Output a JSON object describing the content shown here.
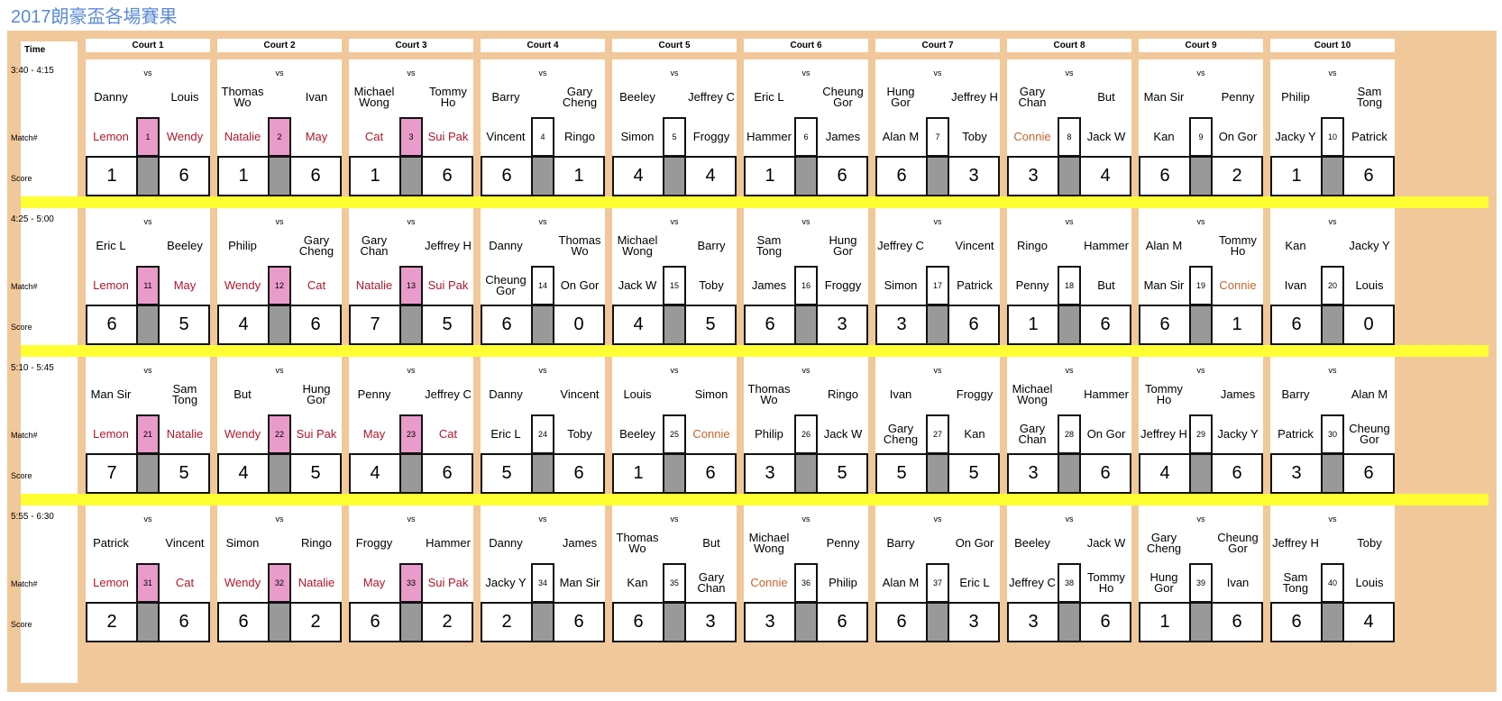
{
  "title": "2017朗豪盃各場賽果",
  "header": {
    "time_label": "Time",
    "vs_label": "vs",
    "match_label": "Match#",
    "score_label": "Score",
    "courts": [
      "Court 1",
      "Court 2",
      "Court 3",
      "Court 4",
      "Court 5",
      "Court 6",
      "Court 7",
      "Court 8",
      "Court 9",
      "Court 10"
    ]
  },
  "colors": {
    "umpire_red": "#b0172b",
    "umpire_orange": "#c8642a",
    "highlight_pink": "#e99bc9",
    "separator_yellow": "#ffff33",
    "frame_tan": "#f1c89a"
  },
  "slots": [
    {
      "time": "3:40 - 4:15",
      "matches": [
        {
          "p1": "Danny",
          "p2": "Louis",
          "u1": "Lemon",
          "u2": "Wendy",
          "num": "1",
          "s1": "1",
          "s2": "6",
          "u1c": "red",
          "u2c": "red",
          "pink": true
        },
        {
          "p1": "Thomas Wo",
          "p2": "Ivan",
          "u1": "Natalie",
          "u2": "May",
          "num": "2",
          "s1": "1",
          "s2": "6",
          "u1c": "red",
          "u2c": "red",
          "pink": true
        },
        {
          "p1": "Michael Wong",
          "p2": "Tommy Ho",
          "u1": "Cat",
          "u2": "Sui Pak",
          "num": "3",
          "s1": "1",
          "s2": "6",
          "u1c": "red",
          "u2c": "red",
          "pink": true
        },
        {
          "p1": "Barry",
          "p2": "Gary Cheng",
          "u1": "Vincent",
          "u2": "Ringo",
          "num": "4",
          "s1": "6",
          "s2": "1",
          "u1c": "",
          "u2c": "",
          "pink": false
        },
        {
          "p1": "Beeley",
          "p2": "Jeffrey C",
          "u1": "Simon",
          "u2": "Froggy",
          "num": "5",
          "s1": "4",
          "s2": "4",
          "u1c": "",
          "u2c": "",
          "pink": false
        },
        {
          "p1": "Eric L",
          "p2": "Cheung Gor",
          "u1": "Hammer",
          "u2": "James",
          "num": "6",
          "s1": "1",
          "s2": "6",
          "u1c": "",
          "u2c": "",
          "pink": false
        },
        {
          "p1": "Hung Gor",
          "p2": "Jeffrey H",
          "u1": "Alan M",
          "u2": "Toby",
          "num": "7",
          "s1": "6",
          "s2": "3",
          "u1c": "",
          "u2c": "",
          "pink": false
        },
        {
          "p1": "Gary Chan",
          "p2": "But",
          "u1": "Connie",
          "u2": "Jack W",
          "num": "8",
          "s1": "3",
          "s2": "4",
          "u1c": "orange",
          "u2c": "",
          "pink": false
        },
        {
          "p1": "Man Sir",
          "p2": "Penny",
          "u1": "Kan",
          "u2": "On Gor",
          "num": "9",
          "s1": "6",
          "s2": "2",
          "u1c": "",
          "u2c": "",
          "pink": false
        },
        {
          "p1": "Philip",
          "p2": "Sam Tong",
          "u1": "Jacky Y",
          "u2": "Patrick",
          "num": "10",
          "s1": "1",
          "s2": "6",
          "u1c": "",
          "u2c": "",
          "pink": false
        }
      ]
    },
    {
      "time": "4:25 - 5:00",
      "matches": [
        {
          "p1": "Eric L",
          "p2": "Beeley",
          "u1": "Lemon",
          "u2": "May",
          "num": "11",
          "s1": "6",
          "s2": "5",
          "u1c": "red",
          "u2c": "red",
          "pink": true
        },
        {
          "p1": "Philip",
          "p2": "Gary Cheng",
          "u1": "Wendy",
          "u2": "Cat",
          "num": "12",
          "s1": "4",
          "s2": "6",
          "u1c": "red",
          "u2c": "red",
          "pink": true
        },
        {
          "p1": "Gary Chan",
          "p2": "Jeffrey H",
          "u1": "Natalie",
          "u2": "Sui Pak",
          "num": "13",
          "s1": "7",
          "s2": "5",
          "u1c": "red",
          "u2c": "red",
          "pink": true
        },
        {
          "p1": "Danny",
          "p2": "Thomas Wo",
          "u1": "Cheung Gor",
          "u2": "On Gor",
          "num": "14",
          "s1": "6",
          "s2": "0",
          "u1c": "",
          "u2c": "",
          "pink": false
        },
        {
          "p1": "Michael Wong",
          "p2": "Barry",
          "u1": "Jack W",
          "u2": "Toby",
          "num": "15",
          "s1": "4",
          "s2": "5",
          "u1c": "",
          "u2c": "",
          "pink": false
        },
        {
          "p1": "Sam Tong",
          "p2": "Hung Gor",
          "u1": "James",
          "u2": "Froggy",
          "num": "16",
          "s1": "6",
          "s2": "3",
          "u1c": "",
          "u2c": "",
          "pink": false
        },
        {
          "p1": "Jeffrey C",
          "p2": "Vincent",
          "u1": "Simon",
          "u2": "Patrick",
          "num": "17",
          "s1": "3",
          "s2": "6",
          "u1c": "",
          "u2c": "",
          "pink": false
        },
        {
          "p1": "Ringo",
          "p2": "Hammer",
          "u1": "Penny",
          "u2": "But",
          "num": "18",
          "s1": "1",
          "s2": "6",
          "u1c": "",
          "u2c": "",
          "pink": false
        },
        {
          "p1": "Alan M",
          "p2": "Tommy Ho",
          "u1": "Man Sir",
          "u2": "Connie",
          "num": "19",
          "s1": "6",
          "s2": "1",
          "u1c": "",
          "u2c": "orange",
          "pink": false
        },
        {
          "p1": "Kan",
          "p2": "Jacky Y",
          "u1": "Ivan",
          "u2": "Louis",
          "num": "20",
          "s1": "6",
          "s2": "0",
          "u1c": "",
          "u2c": "",
          "pink": false
        }
      ]
    },
    {
      "time": "5:10 - 5:45",
      "matches": [
        {
          "p1": "Man Sir",
          "p2": "Sam Tong",
          "u1": "Lemon",
          "u2": "Natalie",
          "num": "21",
          "s1": "7",
          "s2": "5",
          "u1c": "red",
          "u2c": "red",
          "pink": true
        },
        {
          "p1": "But",
          "p2": "Hung Gor",
          "u1": "Wendy",
          "u2": "Sui Pak",
          "num": "22",
          "s1": "4",
          "s2": "5",
          "u1c": "red",
          "u2c": "red",
          "pink": true
        },
        {
          "p1": "Penny",
          "p2": "Jeffrey C",
          "u1": "May",
          "u2": "Cat",
          "num": "23",
          "s1": "4",
          "s2": "6",
          "u1c": "red",
          "u2c": "red",
          "pink": true
        },
        {
          "p1": "Danny",
          "p2": "Vincent",
          "u1": "Eric L",
          "u2": "Toby",
          "num": "24",
          "s1": "5",
          "s2": "6",
          "u1c": "",
          "u2c": "",
          "pink": false
        },
        {
          "p1": "Louis",
          "p2": "Simon",
          "u1": "Beeley",
          "u2": "Connie",
          "num": "25",
          "s1": "1",
          "s2": "6",
          "u1c": "",
          "u2c": "orange",
          "pink": false
        },
        {
          "p1": "Thomas Wo",
          "p2": "Ringo",
          "u1": "Philip",
          "u2": "Jack W",
          "num": "26",
          "s1": "3",
          "s2": "5",
          "u1c": "",
          "u2c": "",
          "pink": false
        },
        {
          "p1": "Ivan",
          "p2": "Froggy",
          "u1": "Gary Cheng",
          "u2": "Kan",
          "num": "27",
          "s1": "5",
          "s2": "5",
          "u1c": "",
          "u2c": "",
          "pink": false
        },
        {
          "p1": "Michael Wong",
          "p2": "Hammer",
          "u1": "Gary Chan",
          "u2": "On Gor",
          "num": "28",
          "s1": "3",
          "s2": "6",
          "u1c": "",
          "u2c": "",
          "pink": false
        },
        {
          "p1": "Tommy Ho",
          "p2": "James",
          "u1": "Jeffrey H",
          "u2": "Jacky Y",
          "num": "29",
          "s1": "4",
          "s2": "6",
          "u1c": "",
          "u2c": "",
          "pink": false
        },
        {
          "p1": "Barry",
          "p2": "Alan M",
          "u1": "Patrick",
          "u2": "Cheung Gor",
          "num": "30",
          "s1": "3",
          "s2": "6",
          "u1c": "",
          "u2c": "",
          "pink": false
        }
      ]
    },
    {
      "time": "5:55 - 6:30",
      "matches": [
        {
          "p1": "Patrick",
          "p2": "Vincent",
          "u1": "Lemon",
          "u2": "Cat",
          "num": "31",
          "s1": "2",
          "s2": "6",
          "u1c": "red",
          "u2c": "red",
          "pink": true
        },
        {
          "p1": "Simon",
          "p2": "Ringo",
          "u1": "Wendy",
          "u2": "Natalie",
          "num": "32",
          "s1": "6",
          "s2": "2",
          "u1c": "red",
          "u2c": "red",
          "pink": true
        },
        {
          "p1": "Froggy",
          "p2": "Hammer",
          "u1": "May",
          "u2": "Sui Pak",
          "num": "33",
          "s1": "6",
          "s2": "2",
          "u1c": "red",
          "u2c": "red",
          "pink": true
        },
        {
          "p1": "Danny",
          "p2": "James",
          "u1": "Jacky Y",
          "u2": "Man Sir",
          "num": "34",
          "s1": "2",
          "s2": "6",
          "u1c": "",
          "u2c": "",
          "pink": false
        },
        {
          "p1": "Thomas Wo",
          "p2": "But",
          "u1": "Kan",
          "u2": "Gary Chan",
          "num": "35",
          "s1": "6",
          "s2": "3",
          "u1c": "",
          "u2c": "",
          "pink": false
        },
        {
          "p1": "Michael Wong",
          "p2": "Penny",
          "u1": "Connie",
          "u2": "Philip",
          "num": "36",
          "s1": "3",
          "s2": "6",
          "u1c": "orange",
          "u2c": "",
          "pink": false
        },
        {
          "p1": "Barry",
          "p2": "On Gor",
          "u1": "Alan M",
          "u2": "Eric L",
          "num": "37",
          "s1": "6",
          "s2": "3",
          "u1c": "",
          "u2c": "",
          "pink": false
        },
        {
          "p1": "Beeley",
          "p2": "Jack W",
          "u1": "Jeffrey C",
          "u2": "Tommy Ho",
          "num": "38",
          "s1": "3",
          "s2": "6",
          "u1c": "",
          "u2c": "",
          "pink": false
        },
        {
          "p1": "Gary Cheng",
          "p2": "Cheung Gor",
          "u1": "Hung Gor",
          "u2": "Ivan",
          "num": "39",
          "s1": "1",
          "s2": "6",
          "u1c": "",
          "u2c": "",
          "pink": false
        },
        {
          "p1": "Jeffrey H",
          "p2": "Toby",
          "u1": "Sam Tong",
          "u2": "Louis",
          "num": "40",
          "s1": "6",
          "s2": "4",
          "u1c": "",
          "u2c": "",
          "pink": false
        }
      ]
    }
  ]
}
